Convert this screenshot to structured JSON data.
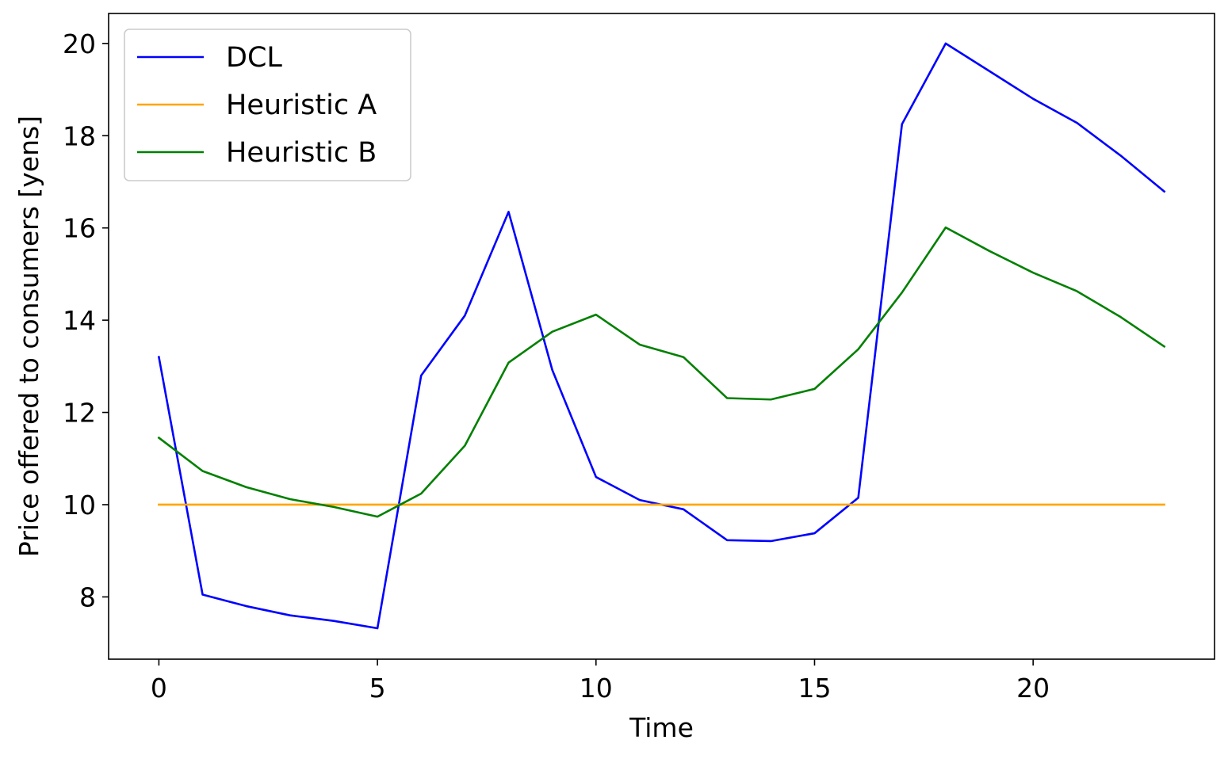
{
  "chart_data": {
    "type": "line",
    "title": "",
    "xlabel": "Time",
    "ylabel": "Price offered to consumers [yens]",
    "xlim": [
      -1.15,
      24.15
    ],
    "ylim": [
      6.65,
      20.65
    ],
    "xticks": [
      0,
      5,
      10,
      15,
      20
    ],
    "yticks": [
      8,
      10,
      12,
      14,
      16,
      18,
      20
    ],
    "grid": false,
    "legend_position": "top-left",
    "x": [
      0,
      1,
      2,
      3,
      4,
      5,
      6,
      7,
      8,
      9,
      10,
      11,
      12,
      13,
      14,
      15,
      16,
      17,
      18,
      19,
      20,
      21,
      22,
      23
    ],
    "series": [
      {
        "name": "DCL",
        "color": "#0000ff",
        "values": [
          13.2,
          8.05,
          7.8,
          7.6,
          7.48,
          7.32,
          12.8,
          14.1,
          16.35,
          12.92,
          10.6,
          10.1,
          9.9,
          9.23,
          9.21,
          9.38,
          10.15,
          18.25,
          20.0,
          19.4,
          18.8,
          18.28,
          17.57,
          16.79
        ]
      },
      {
        "name": "Heuristic A",
        "color": "#ffa500",
        "values": [
          10,
          10,
          10,
          10,
          10,
          10,
          10,
          10,
          10,
          10,
          10,
          10,
          10,
          10,
          10,
          10,
          10,
          10,
          10,
          10,
          10,
          10,
          10,
          10
        ]
      },
      {
        "name": "Heuristic B",
        "color": "#008000",
        "values": [
          11.45,
          10.73,
          10.38,
          10.12,
          9.95,
          9.74,
          10.24,
          11.28,
          13.08,
          13.75,
          14.12,
          13.47,
          13.2,
          12.31,
          12.28,
          12.51,
          13.37,
          14.6,
          16.01,
          15.5,
          15.03,
          14.63,
          14.07,
          13.43
        ]
      }
    ]
  }
}
